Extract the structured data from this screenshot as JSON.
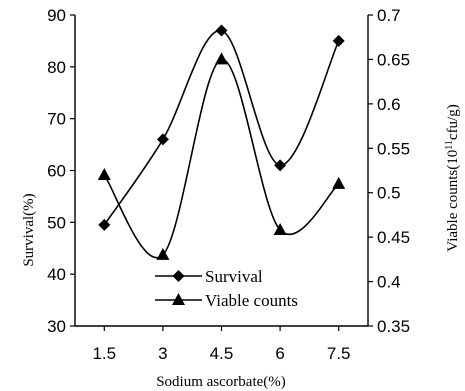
{
  "chart_data": {
    "type": "line",
    "x": [
      1.5,
      3,
      4.5,
      6,
      7.5
    ],
    "x_tick_labels": [
      "1.5",
      "3",
      "4.5",
      "6",
      "7.5"
    ],
    "xlabel": "Sodium ascorbate(%)",
    "ylabel_left": "Survival(%)",
    "ylabel_right_prefix": "Viable counts(10",
    "ylabel_right_sup": "11",
    "ylabel_right_suffix": "cfu/g)",
    "ylim_left": [
      30,
      90
    ],
    "ylim_right": [
      0.35,
      0.7
    ],
    "y_left_ticks": [
      "30",
      "40",
      "50",
      "60",
      "70",
      "80",
      "90"
    ],
    "y_right_ticks": [
      "0.35",
      "0.4",
      "0.45",
      "0.5",
      "0.55",
      "0.6",
      "0.65",
      "0.7"
    ],
    "smooth": true,
    "grid": false,
    "legend_position": "bottom-center",
    "series": [
      {
        "name": "Survival",
        "axis": "left",
        "marker": "diamond",
        "values": [
          49.5,
          66,
          87,
          61,
          85
        ]
      },
      {
        "name": "Viable counts",
        "axis": "right",
        "marker": "triangle",
        "values": [
          0.52,
          0.43,
          0.65,
          0.458,
          0.51
        ]
      }
    ],
    "colors": {
      "line": "#000000",
      "background": "#ffffff"
    }
  }
}
